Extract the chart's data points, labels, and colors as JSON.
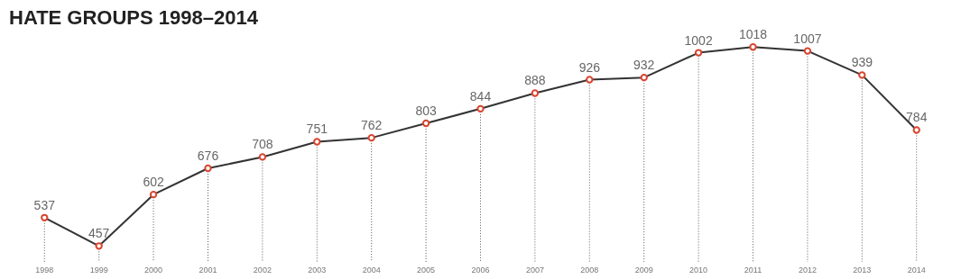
{
  "chart_data": {
    "type": "line",
    "title": "HATE GROUPS 1998–2014",
    "categories": [
      "1998",
      "1999",
      "2000",
      "2001",
      "2002",
      "2003",
      "2004",
      "2005",
      "2006",
      "2007",
      "2008",
      "2009",
      "2010",
      "2011",
      "2012",
      "2013",
      "2014"
    ],
    "series": [
      {
        "color": "#333333",
        "values": [
          537,
          457,
          602,
          676,
          708,
          751,
          762,
          803,
          844,
          888,
          926,
          932,
          1002,
          1018,
          1007,
          939,
          784
        ]
      }
    ],
    "marker": "circle",
    "data_labels": true,
    "grid": "x",
    "tick_labels": "x"
  }
}
